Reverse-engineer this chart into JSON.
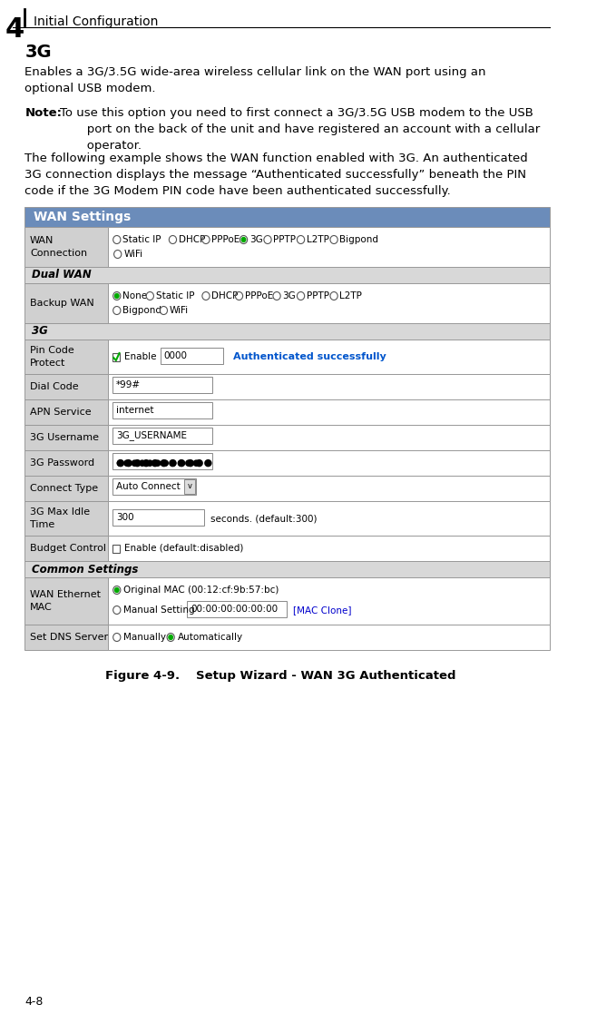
{
  "bg_color": "#ffffff",
  "chapter_num": "4",
  "chapter_title": "Initial Configuration",
  "section_title": "3G",
  "body_text1": "Enables a 3G/3.5G wide-area wireless cellular link on the WAN port using an\noptional USB modem.",
  "note_label": "Note:",
  "note_text": "To use this option you need to first connect a 3G/3.5G USB modem to the USB\n       port on the back of the unit and have registered an account with a cellular\n       operator.",
  "body_text2": "The following example shows the WAN function enabled with 3G. An authenticated\n3G connection displays the message “Authenticated successfully” beneath the PIN\ncode if the 3G Modem PIN code have been authenticated successfully.",
  "table_header": "WAN Settings",
  "table_header_bg": "#6b8cba",
  "table_header_fg": "#ffffff",
  "section_bg_dark": "#c8c8c8",
  "section_bg_light": "#f0f0f0",
  "row_bg_white": "#ffffff",
  "row_bg_gray": "#e8e8e8",
  "border_color": "#999999",
  "label_col_bg": "#d0d0d0",
  "dual_wan_bg": "#d8d8d8",
  "section_3g_bg": "#d8d8d8",
  "common_settings_bg": "#d8d8d8",
  "green_radio": "#00aa00",
  "blue_link": "#0000cc",
  "authenticated_color": "#0055cc",
  "figure_caption": "Figure 4-9.  Setup Wizard - WAN 3G Authenticated",
  "page_num": "4-8",
  "table_rows": [
    {
      "label": "WAN\nConnection",
      "content_type": "radio_wan"
    },
    {
      "label": "Dual WAN",
      "content_type": "section_header"
    },
    {
      "label": "Backup WAN",
      "content_type": "radio_backup"
    },
    {
      "label": "3G",
      "content_type": "section_header_3g"
    },
    {
      "label": "Pin Code\nProtect",
      "content_type": "pin_code"
    },
    {
      "label": "Dial Code",
      "content_type": "input_dialcode"
    },
    {
      "label": "APN Service",
      "content_type": "input_apn"
    },
    {
      "label": "3G Username",
      "content_type": "input_username"
    },
    {
      "label": "3G Password",
      "content_type": "input_password"
    },
    {
      "label": "Connect Type",
      "content_type": "select_connect"
    },
    {
      "label": "3G Max Idle\nTime",
      "content_type": "input_maxidle"
    },
    {
      "label": "Budget Control",
      "content_type": "budget_control"
    },
    {
      "label": "Common Settings",
      "content_type": "section_header_common"
    },
    {
      "label": "WAN Ethernet\nMAC",
      "content_type": "wan_mac"
    },
    {
      "label": "Set DNS Server",
      "content_type": "dns_server"
    }
  ]
}
